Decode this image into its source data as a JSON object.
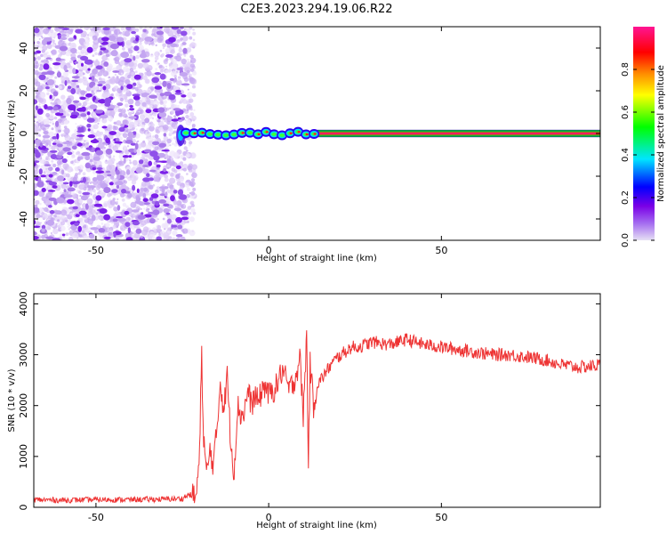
{
  "title": "C2E3.2023.294.19.06.R22",
  "chart_data": [
    {
      "type": "heatmap",
      "xlabel": "Height of straight line (km)",
      "ylabel": "Frequency (Hz)",
      "xlim": [
        -68,
        96
      ],
      "ylim": [
        -50,
        50
      ],
      "xticks": [
        -50,
        0,
        50
      ],
      "yticks": [
        -40,
        -20,
        0,
        20,
        40
      ],
      "noise_region_x": [
        -68,
        -23
      ],
      "signal": {
        "frequency": 0,
        "x_start": -26,
        "discrete_segment_end": 14,
        "continuous_segment": [
          14,
          96
        ]
      },
      "colorbar": {
        "label": "Normalized spectral amplitude",
        "range": [
          0.0,
          1.0
        ],
        "ticks": [
          0.0,
          0.2,
          0.4,
          0.6,
          0.8
        ],
        "colors": [
          "#e6e0f4",
          "#7a00e6",
          "#0000ff",
          "#00e5ff",
          "#00ff00",
          "#ffff00",
          "#ff8c00",
          "#ff0000",
          "#ff1493"
        ]
      },
      "grid": false
    },
    {
      "type": "line",
      "xlabel": "Height of straight line (km)",
      "ylabel": "SNR (10 * v/v)",
      "xlim": [
        -68,
        96
      ],
      "ylim": [
        0,
        4200
      ],
      "xticks": [
        -50,
        0,
        50
      ],
      "yticks": [
        0,
        1000,
        2000,
        3000,
        4000
      ],
      "line_color": "#ee3333",
      "grid": false,
      "series": [
        {
          "x": [
            -68,
            -60,
            -50,
            -40,
            -30,
            -25,
            -23,
            -21,
            -20,
            -19.4,
            -19,
            -18,
            -17,
            -16,
            -15,
            -14,
            -13,
            -12,
            -11,
            -10,
            -9,
            -8,
            -7,
            -6,
            -5,
            -4,
            -3,
            -2,
            -1,
            0,
            2,
            4,
            6,
            8,
            9,
            10,
            11,
            11.5,
            12,
            13,
            14,
            16,
            18,
            20,
            22,
            24,
            26,
            28,
            30,
            35,
            40,
            45,
            50,
            55,
            60,
            65,
            70,
            75,
            80,
            85,
            90,
            96
          ],
          "values": [
            150,
            140,
            150,
            150,
            160,
            170,
            250,
            200,
            1000,
            3200,
            1600,
            600,
            1100,
            850,
            1500,
            2500,
            1900,
            2600,
            1300,
            700,
            2000,
            1800,
            1900,
            2300,
            2000,
            2200,
            2050,
            2300,
            2400,
            2200,
            2350,
            2700,
            2300,
            2600,
            3000,
            1800,
            3400,
            900,
            2800,
            2000,
            2400,
            2600,
            2800,
            2950,
            3050,
            3150,
            3150,
            3200,
            3250,
            3200,
            3300,
            3200,
            3150,
            3100,
            3050,
            3000,
            3000,
            2950,
            2900,
            2800,
            2750,
            2800
          ]
        }
      ]
    }
  ]
}
